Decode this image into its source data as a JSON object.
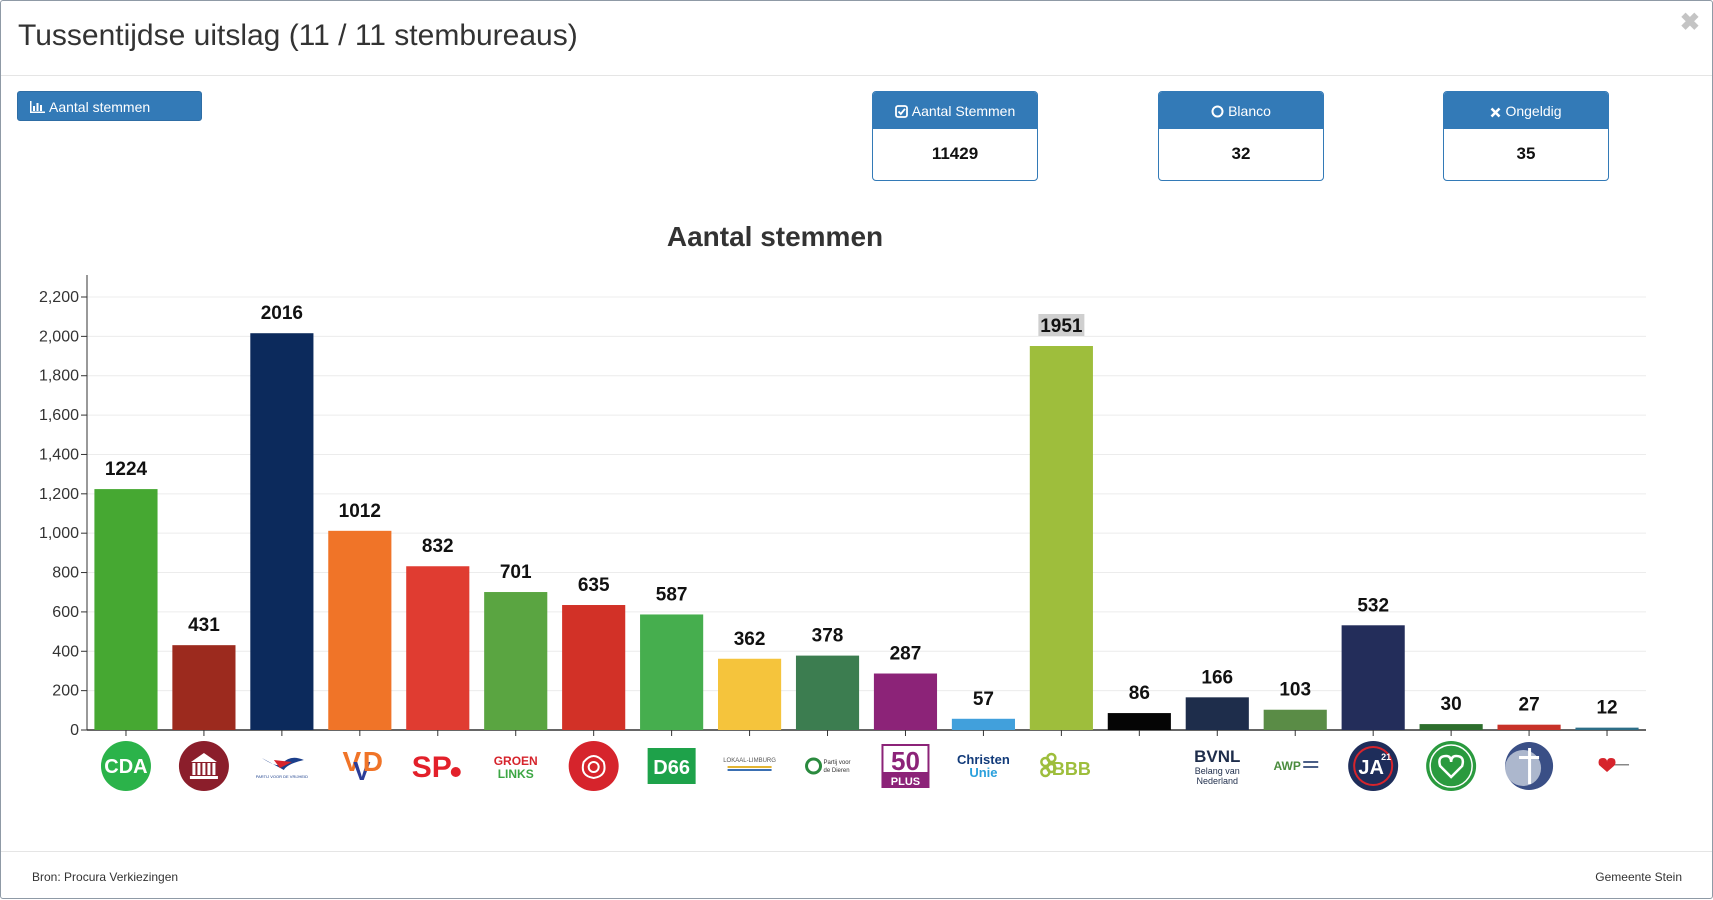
{
  "header": {
    "title": "Tussentijdse uitslag (11 / 11 stembureaus)"
  },
  "toolbar": {
    "chart_button_label": "Aantal stemmen"
  },
  "stats": [
    {
      "label": "Aantal Stemmen",
      "value": "11429",
      "icon": "check-square-icon"
    },
    {
      "label": "Blanco",
      "value": "32",
      "icon": "circle-icon"
    },
    {
      "label": "Ongeldig",
      "value": "35",
      "icon": "x-icon"
    }
  ],
  "colors": {
    "primary": "#337ab7"
  },
  "chart_data": {
    "type": "bar",
    "title": "Aantal stemmen",
    "ylim": [
      0,
      2200
    ],
    "yticks": [
      "0",
      "200",
      "400",
      "600",
      "800",
      "1,000",
      "1,200",
      "1,400",
      "1,600",
      "1,800",
      "2,000",
      "2,200"
    ],
    "grid": true,
    "values": [
      1224,
      431,
      2016,
      1012,
      832,
      701,
      635,
      587,
      362,
      378,
      287,
      57,
      1951,
      86,
      166,
      103,
      532,
      30,
      27,
      12
    ],
    "colors": [
      "#46a832",
      "#9c2a1e",
      "#0c2a5c",
      "#f07428",
      "#e03c31",
      "#5aa541",
      "#d23127",
      "#46ae4e",
      "#f5c43c",
      "#3c7d50",
      "#8c2378",
      "#41a0dc",
      "#9ebe3c",
      "#050505",
      "#1e2d4b",
      "#5a8c46",
      "#232d5a",
      "#2d6e2d",
      "#c83228",
      "#2d6e87"
    ],
    "logos": [
      {
        "name": "cda-logo",
        "text": "CDA"
      },
      {
        "name": "partij-2-logo",
        "text": ""
      },
      {
        "name": "pvv-logo",
        "text": "PARTIJ VOOR DE VRIJHEID"
      },
      {
        "name": "vvd-logo",
        "text": "VVD"
      },
      {
        "name": "sp-logo",
        "text": "SP"
      },
      {
        "name": "groenlinks-logo",
        "text": "GROEN LINKS"
      },
      {
        "name": "pvda-logo",
        "text": ""
      },
      {
        "name": "d66-logo",
        "text": "D66"
      },
      {
        "name": "lokaal-limburg-logo",
        "text": "LOKAAL-LIMBURG"
      },
      {
        "name": "partij-voor-de-dieren-logo",
        "text": "Partij voor de Dieren"
      },
      {
        "name": "50plus-logo",
        "text": "50 PLUS"
      },
      {
        "name": "christenunie-logo",
        "text": "Christen Unie"
      },
      {
        "name": "bbb-logo",
        "text": "BBB"
      },
      {
        "name": "partij-14-logo",
        "text": ""
      },
      {
        "name": "bvnl-logo",
        "text": "BVNL Belang van Nederland"
      },
      {
        "name": "awp-logo",
        "text": "AWP"
      },
      {
        "name": "ja21-logo",
        "text": "JA21"
      },
      {
        "name": "partij-18-logo",
        "text": ""
      },
      {
        "name": "partij-19-logo",
        "text": ""
      },
      {
        "name": "partij-20-logo",
        "text": ""
      }
    ]
  },
  "footer": {
    "source": "Bron: Procura Verkiezingen",
    "organisation": "Gemeente Stein"
  }
}
